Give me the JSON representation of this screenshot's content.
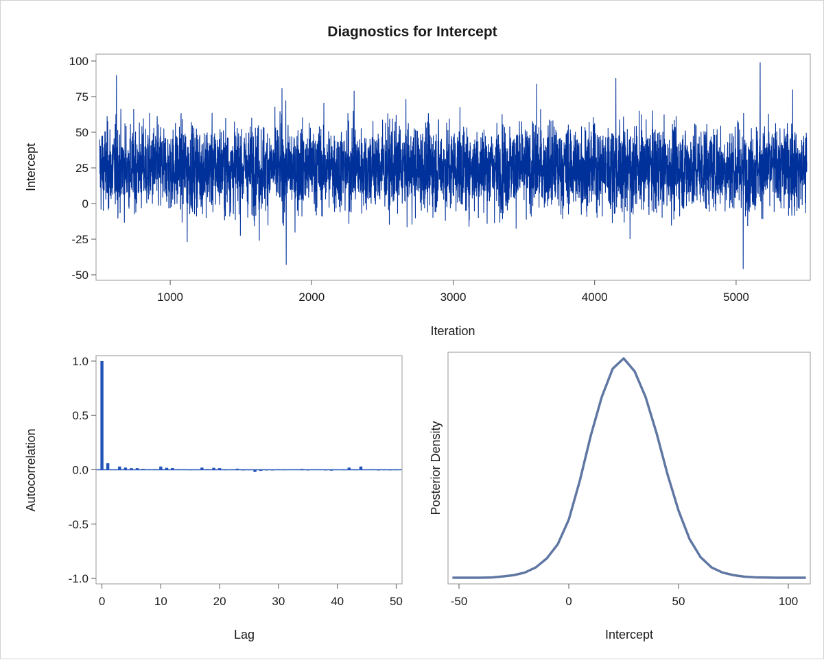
{
  "title": "Diagnostics for Intercept",
  "colors": {
    "trace": "#00309a",
    "acf": "#2153b8",
    "density": "#6077a3",
    "frame": "#a8a8a8"
  },
  "chart_data": [
    {
      "type": "line",
      "panel": "trace",
      "xlabel": "Iteration",
      "ylabel": "Intercept",
      "xlim": [
        500,
        5500
      ],
      "ylim": [
        -50,
        100
      ],
      "xticks": [
        1000,
        2000,
        3000,
        4000,
        5000
      ],
      "yticks": [
        -50,
        -25,
        0,
        25,
        50,
        75,
        100
      ],
      "n_iterations": 5000,
      "center": 25,
      "spread_sd": 15,
      "extremes": [
        {
          "x": 620,
          "y": 90
        },
        {
          "x": 1120,
          "y": -27
        },
        {
          "x": 1630,
          "y": -26
        },
        {
          "x": 1790,
          "y": 81
        },
        {
          "x": 1820,
          "y": -43
        },
        {
          "x": 2300,
          "y": 79
        },
        {
          "x": 3590,
          "y": 84
        },
        {
          "x": 4150,
          "y": 88
        },
        {
          "x": 4250,
          "y": -25
        },
        {
          "x": 5050,
          "y": -46
        },
        {
          "x": 5170,
          "y": 99
        },
        {
          "x": 5400,
          "y": 80
        }
      ]
    },
    {
      "type": "bar",
      "panel": "autocorrelation",
      "xlabel": "Lag",
      "ylabel": "Autocorrelation",
      "xlim": [
        -1,
        51
      ],
      "ylim": [
        -1.05,
        1.05
      ],
      "xticks": [
        0,
        10,
        20,
        30,
        40,
        50
      ],
      "yticks": [
        -1.0,
        -0.5,
        0.0,
        0.5,
        1.0
      ],
      "ytick_labels": [
        "-1.0",
        "-0.5",
        "0.0",
        "0.5",
        "1.0"
      ],
      "lags": [
        0,
        1,
        2,
        3,
        4,
        5,
        6,
        7,
        8,
        9,
        10,
        11,
        12,
        13,
        14,
        15,
        16,
        17,
        18,
        19,
        20,
        21,
        22,
        23,
        24,
        25,
        26,
        27,
        28,
        29,
        30,
        31,
        32,
        33,
        34,
        35,
        36,
        37,
        38,
        39,
        40,
        41,
        42,
        43,
        44,
        45,
        46,
        47,
        48,
        49,
        50
      ],
      "values": [
        1.0,
        0.06,
        0.003,
        0.03,
        0.02,
        0.015,
        0.015,
        0.008,
        0.004,
        0.005,
        0.03,
        0.018,
        0.016,
        0.005,
        0.004,
        0.002,
        0.003,
        0.02,
        0.006,
        0.018,
        0.015,
        0.002,
        0.003,
        0.01,
        -0.006,
        0.002,
        -0.02,
        -0.01,
        -0.004,
        -0.006,
        0.004,
        0.002,
        0.003,
        0.004,
        0.008,
        -0.006,
        0.003,
        0.004,
        -0.003,
        -0.008,
        0.003,
        0.002,
        0.02,
        0.002,
        0.03,
        0.003,
        0.004,
        -0.004,
        0.002,
        0.001,
        0.002
      ]
    },
    {
      "type": "line",
      "panel": "density",
      "xlabel": "Intercept",
      "ylabel": "Posterior Density",
      "xlim": [
        -55,
        110
      ],
      "xticks": [
        -50,
        0,
        50,
        100
      ],
      "yticks": [],
      "x": [
        -53,
        -45,
        -40,
        -35,
        -30,
        -25,
        -20,
        -15,
        -10,
        -5,
        0,
        5,
        10,
        15,
        20,
        25,
        30,
        35,
        40,
        45,
        50,
        55,
        60,
        65,
        70,
        75,
        80,
        85,
        90,
        95,
        100,
        105,
        108
      ],
      "y": [
        0.0,
        0.0,
        0.0,
        0.0002,
        0.001,
        0.002,
        0.004,
        0.008,
        0.015,
        0.026,
        0.045,
        0.075,
        0.11,
        0.14,
        0.162,
        0.17,
        0.16,
        0.14,
        0.112,
        0.08,
        0.052,
        0.03,
        0.016,
        0.008,
        0.004,
        0.002,
        0.0008,
        0.0003,
        0.0001,
        0.0,
        0.0,
        0.0,
        0.0
      ]
    }
  ]
}
